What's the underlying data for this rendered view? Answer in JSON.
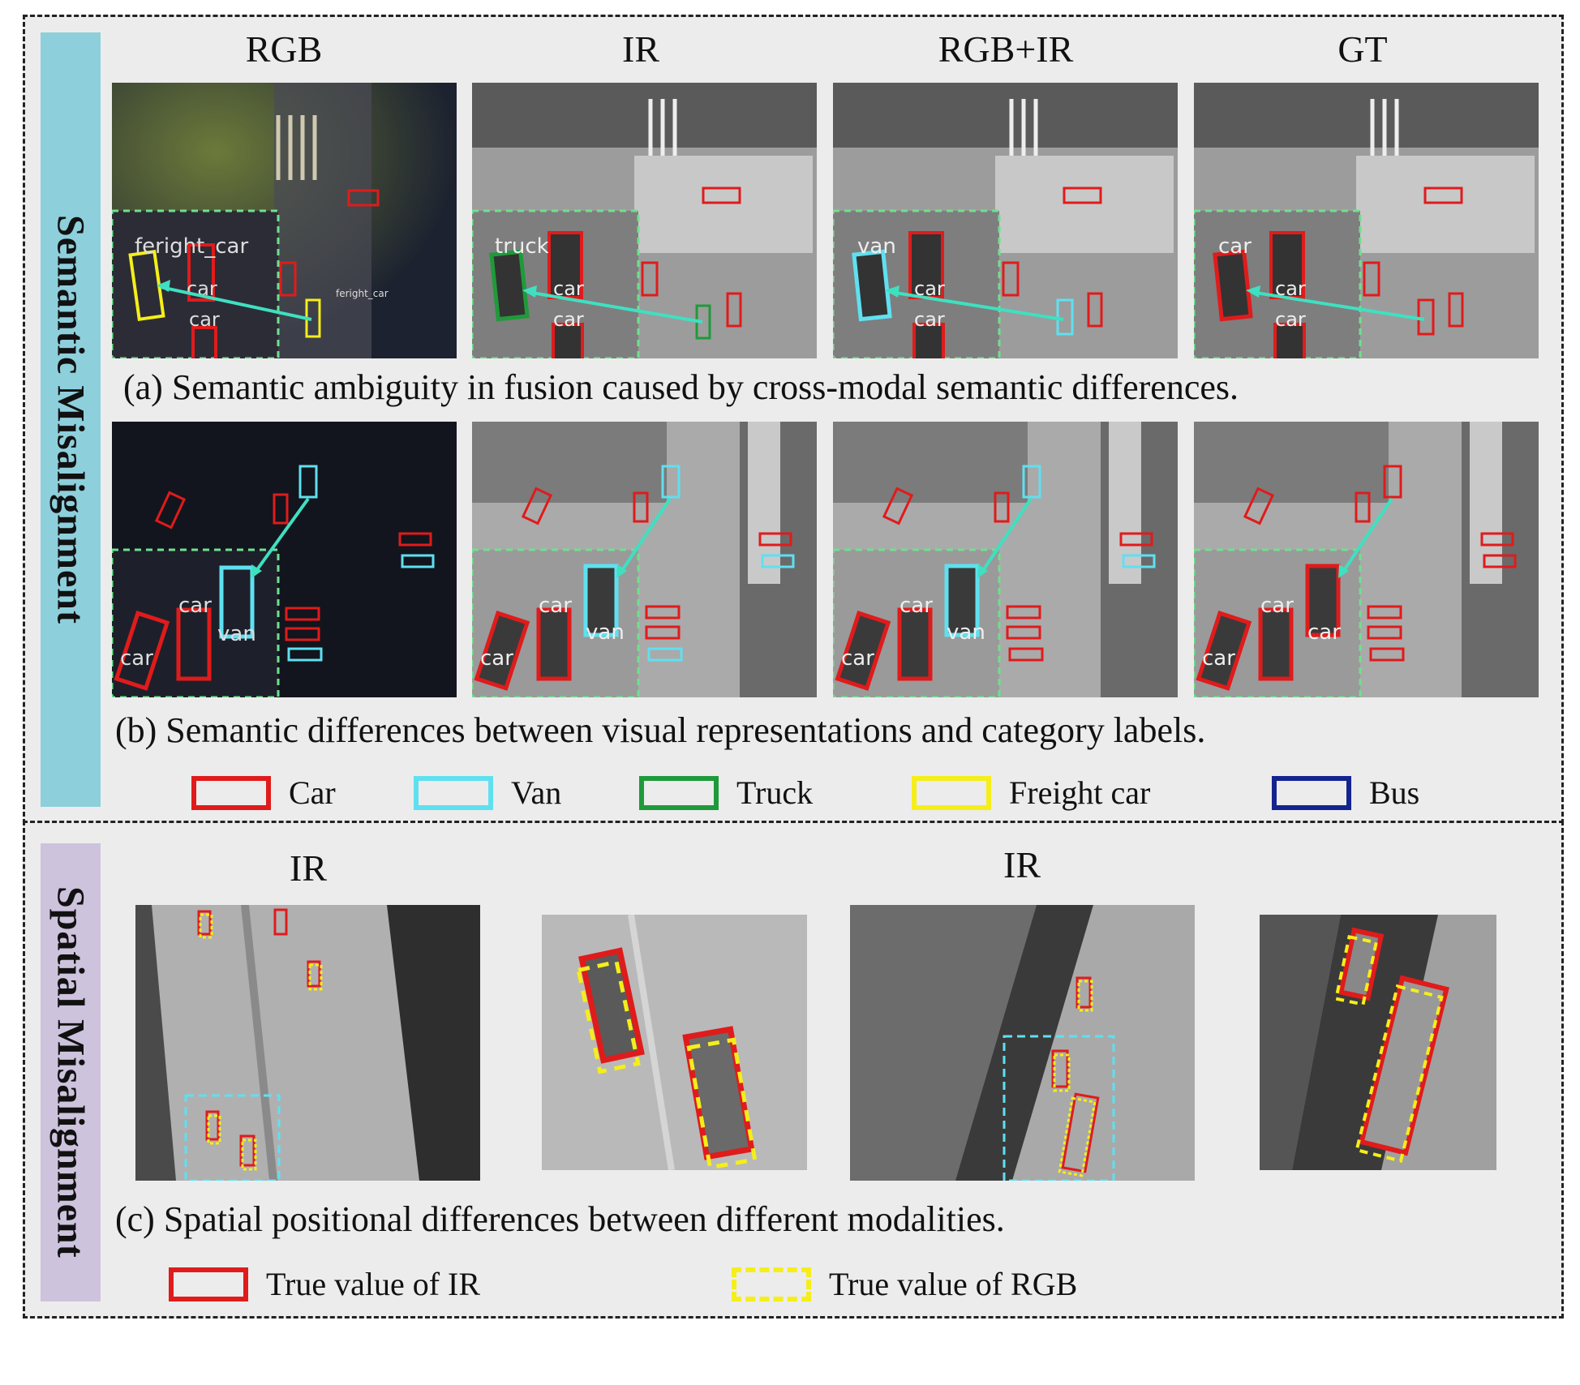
{
  "side_labels": {
    "semantic": "Semantic Misalignment",
    "spatial": "Spatial Misalignment"
  },
  "columns": [
    "RGB",
    "IR",
    "RGB+IR",
    "GT"
  ],
  "captions": {
    "a": "(a) Semantic ambiguity in fusion caused by cross-modal semantic differences.",
    "b": "(b) Semantic differences between visual representations and category labels.",
    "c": "(c)  Spatial positional differences between different modalities."
  },
  "detection_labels": {
    "row_a": {
      "rgb_main": "feright_car",
      "ir_main": "truck",
      "fused_main": "van",
      "gt_main": "car",
      "secondary": "car",
      "small_freight": "feright_car"
    },
    "row_b": {
      "car": "car",
      "van": "van"
    }
  },
  "legend_classes": [
    {
      "label": "Car",
      "color": "#e01b1b"
    },
    {
      "label": "Van",
      "color": "#5fe0f0"
    },
    {
      "label": "Truck",
      "color": "#1f9a3a"
    },
    {
      "label": "Freight car",
      "color": "#f5ee1a"
    },
    {
      "label": "Bus",
      "color": "#14248f"
    }
  ],
  "spatial_titles": {
    "left": "IR",
    "right": "IR"
  },
  "legend_spatial": [
    {
      "label": "True value of IR",
      "color": "#e01b1b",
      "style": "solid"
    },
    {
      "label": "True value of RGB",
      "color": "#f5ee1a",
      "style": "dashed"
    }
  ]
}
